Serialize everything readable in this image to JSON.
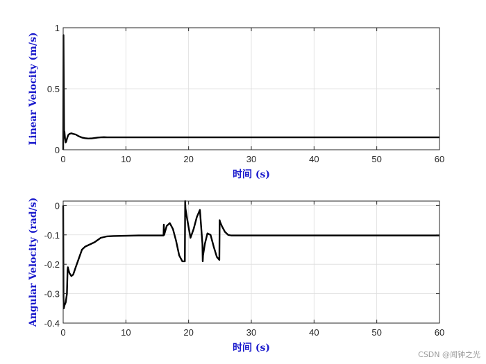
{
  "watermark": "CSDN @闻钟之光",
  "colors": {
    "line": "#000000",
    "axis_label": "#1a1acc",
    "grid": "#dcdcdc",
    "frame": "#262626"
  },
  "chart_data": [
    {
      "type": "line",
      "xlabel": "时间 (s)",
      "ylabel": "Linear Velocity (m/s)",
      "xlim": [
        0,
        60
      ],
      "ylim": [
        0,
        1
      ],
      "xticks": [
        0,
        10,
        20,
        30,
        40,
        50,
        60
      ],
      "xtick_labels": [
        "0",
        "10",
        "20",
        "30",
        "40",
        "50",
        "60"
      ],
      "yticks": [
        0,
        0.5,
        1
      ],
      "ytick_labels": [
        "0",
        "0.5",
        "1"
      ],
      "grid": true,
      "series": [
        {
          "x": [
            0,
            0.05,
            0.1,
            0.15,
            0.2,
            0.3,
            0.4,
            0.5,
            0.6,
            0.8,
            1.0,
            1.3,
            1.6,
            2.0,
            2.5,
            3.0,
            3.5,
            4.0,
            4.5,
            5.0,
            5.5,
            6.0,
            6.5,
            7.0,
            8.0,
            10,
            15,
            20,
            30,
            40,
            50,
            60
          ],
          "y": [
            0,
            0.94,
            0.5,
            0.1,
            0.15,
            0.09,
            0.06,
            0.07,
            0.09,
            0.12,
            0.13,
            0.135,
            0.13,
            0.125,
            0.11,
            0.1,
            0.095,
            0.092,
            0.093,
            0.096,
            0.1,
            0.102,
            0.103,
            0.102,
            0.102,
            0.102,
            0.102,
            0.102,
            0.102,
            0.102,
            0.102,
            0.102
          ]
        }
      ]
    },
    {
      "type": "line",
      "xlabel": "时间 (s)",
      "ylabel": "Angular Velocity (rad/s)",
      "xlim": [
        0,
        60
      ],
      "ylim": [
        -0.4,
        0.015
      ],
      "xticks": [
        0,
        10,
        20,
        30,
        40,
        50,
        60
      ],
      "xtick_labels": [
        "0",
        "10",
        "20",
        "30",
        "40",
        "50",
        "60"
      ],
      "yticks": [
        0,
        -0.1,
        -0.2,
        -0.3,
        -0.4
      ],
      "ytick_labels": [
        "0",
        "-0.1",
        "-0.2",
        "-0.3",
        "-0.4"
      ],
      "grid": true,
      "series": [
        {
          "x": [
            0,
            0.05,
            0.1,
            0.2,
            0.4,
            0.6,
            0.7,
            0.75,
            0.8,
            1.0,
            1.3,
            1.6,
            2.0,
            2.5,
            3.0,
            3.5,
            4.0,
            5.0,
            6.0,
            7.0,
            8.0,
            10,
            12,
            14,
            16,
            16.05,
            16.1,
            16.5,
            17,
            17.5,
            18,
            18.5,
            19,
            19.4,
            19.45,
            19.5,
            19.8,
            20.3,
            20.8,
            21.3,
            21.8,
            22.2,
            22.25,
            22.3,
            22.6,
            23.0,
            23.5,
            24.0,
            24.5,
            24.9,
            24.95,
            25.0,
            25.3,
            25.8,
            26.3,
            26.8,
            27.5,
            30,
            40,
            50,
            60
          ],
          "y": [
            0,
            -0.31,
            -0.35,
            -0.34,
            -0.33,
            -0.3,
            -0.22,
            -0.21,
            -0.215,
            -0.23,
            -0.24,
            -0.235,
            -0.21,
            -0.18,
            -0.15,
            -0.14,
            -0.135,
            -0.125,
            -0.11,
            -0.105,
            -0.104,
            -0.103,
            -0.102,
            -0.102,
            -0.102,
            -0.065,
            -0.1,
            -0.07,
            -0.06,
            -0.08,
            -0.12,
            -0.17,
            -0.19,
            -0.19,
            0.02,
            -0.01,
            -0.05,
            -0.11,
            -0.08,
            -0.04,
            -0.015,
            -0.13,
            -0.19,
            -0.17,
            -0.13,
            -0.095,
            -0.1,
            -0.14,
            -0.175,
            -0.185,
            -0.05,
            -0.055,
            -0.07,
            -0.09,
            -0.1,
            -0.102,
            -0.102,
            -0.102,
            -0.102,
            -0.102,
            -0.102
          ]
        }
      ]
    }
  ]
}
